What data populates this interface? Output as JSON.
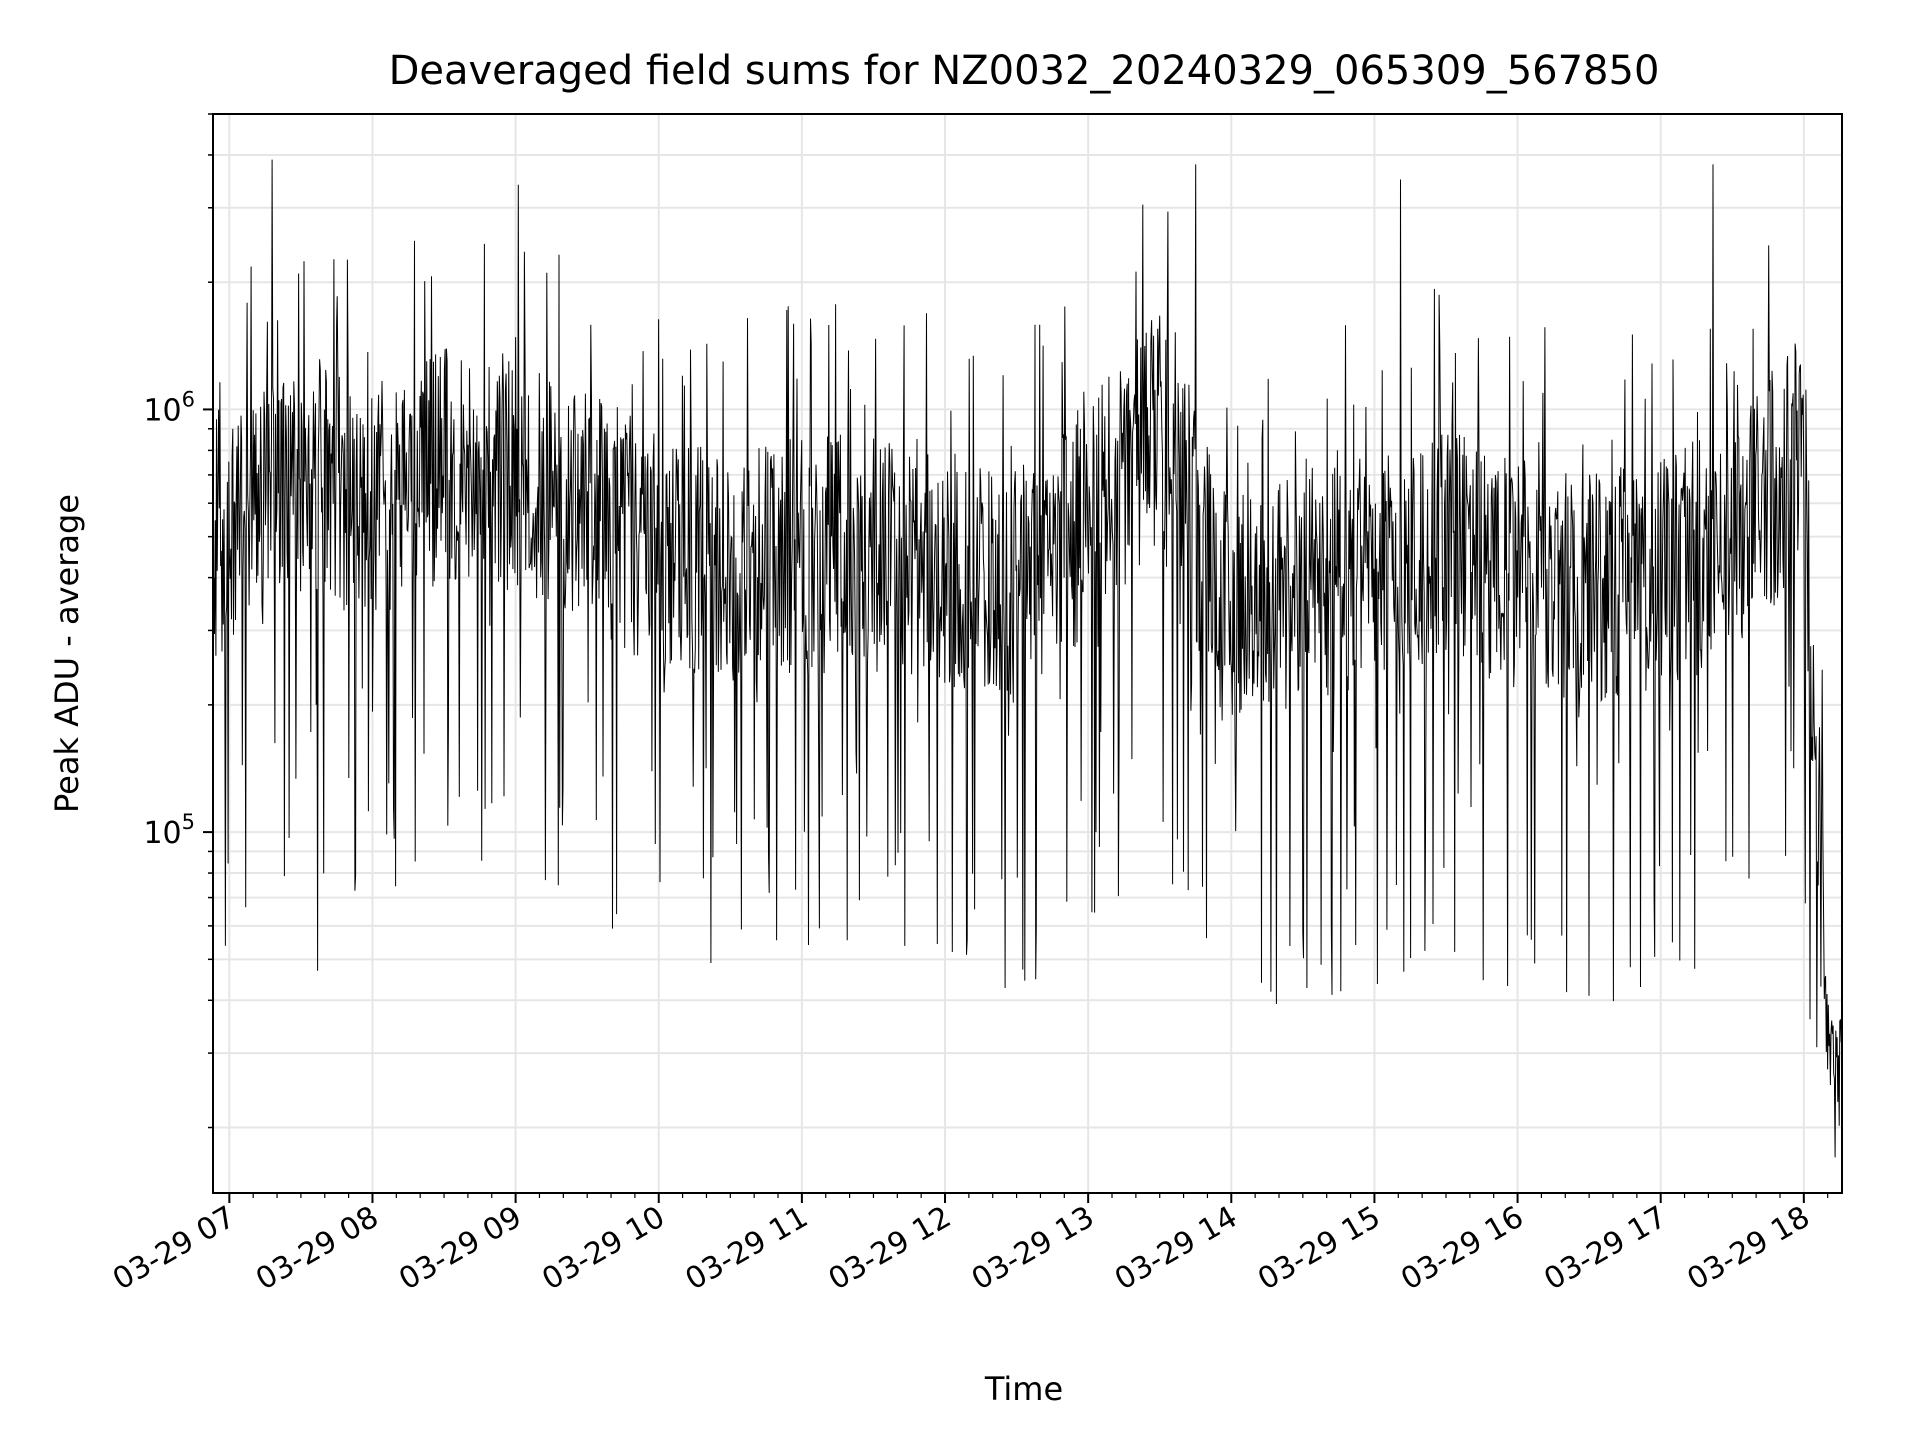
{
  "chart_data": {
    "type": "line",
    "title": "Deaveraged field sums for NZ0032_20240329_065309_567850",
    "xlabel": "Time",
    "ylabel": "Peak ADU - average",
    "x_tick_labels": [
      "03-29 07",
      "03-29 08",
      "03-29 09",
      "03-29 10",
      "03-29 11",
      "03-29 12",
      "03-29 13",
      "03-29 14",
      "03-29 15",
      "03-29 16",
      "03-29 17",
      "03-29 18"
    ],
    "y_tick_labels": [
      {
        "base": "10",
        "exp": "5",
        "value": 100000
      },
      {
        "base": "10",
        "exp": "6",
        "value": 1000000
      }
    ],
    "x_range": [
      "2024-03-29T06:53:09",
      "2024-03-29T18:16:00"
    ],
    "ylim": [
      14000,
      5000000
    ],
    "yscale": "log",
    "grid": true,
    "line_color": "#000000",
    "grid_color": "#e6e6e6",
    "series": [
      {
        "values_hourly_typical": [
          {
            "x": "2024-03-29T07:00",
            "y": 500000
          },
          {
            "x": "2024-03-29T07:30",
            "y": 700000
          },
          {
            "x": "2024-03-29T08:00",
            "y": 600000
          },
          {
            "x": "2024-03-29T08:30",
            "y": 750000
          },
          {
            "x": "2024-03-29T09:00",
            "y": 700000
          },
          {
            "x": "2024-03-29T09:30",
            "y": 600000
          },
          {
            "x": "2024-03-29T10:00",
            "y": 450000
          },
          {
            "x": "2024-03-29T10:30",
            "y": 420000
          },
          {
            "x": "2024-03-29T11:00",
            "y": 450000
          },
          {
            "x": "2024-03-29T11:30",
            "y": 450000
          },
          {
            "x": "2024-03-29T12:00",
            "y": 420000
          },
          {
            "x": "2024-03-29T12:30",
            "y": 380000
          },
          {
            "x": "2024-03-29T13:00",
            "y": 550000
          },
          {
            "x": "2024-03-29T13:30",
            "y": 900000
          },
          {
            "x": "2024-03-29T14:00",
            "y": 300000
          },
          {
            "x": "2024-03-29T14:30",
            "y": 400000
          },
          {
            "x": "2024-03-29T15:00",
            "y": 400000
          },
          {
            "x": "2024-03-29T15:30",
            "y": 500000
          },
          {
            "x": "2024-03-29T16:00",
            "y": 400000
          },
          {
            "x": "2024-03-29T16:30",
            "y": 380000
          },
          {
            "x": "2024-03-29T17:00",
            "y": 400000
          },
          {
            "x": "2024-03-29T17:30",
            "y": 500000
          },
          {
            "x": "2024-03-29T18:00",
            "y": 800000
          },
          {
            "x": "2024-03-29T18:10",
            "y": 30000
          },
          {
            "x": "2024-03-29T18:15",
            "y": 27000
          }
        ],
        "notable_peaks": [
          {
            "x": "2024-03-29T07:18",
            "y": 3900000
          },
          {
            "x": "2024-03-29T09:01",
            "y": 3400000
          },
          {
            "x": "2024-03-29T13:45",
            "y": 3800000
          },
          {
            "x": "2024-03-29T15:11",
            "y": 3500000
          },
          {
            "x": "2024-03-29T17:22",
            "y": 3800000
          }
        ],
        "notable_troughs": [
          {
            "x": "2024-03-29T07:37",
            "y": 47000
          },
          {
            "x": "2024-03-29T14:46",
            "y": 42000
          },
          {
            "x": "2024-03-29T16:30",
            "y": 41000
          },
          {
            "x": "2024-03-29T18:13",
            "y": 17000
          }
        ]
      }
    ]
  }
}
